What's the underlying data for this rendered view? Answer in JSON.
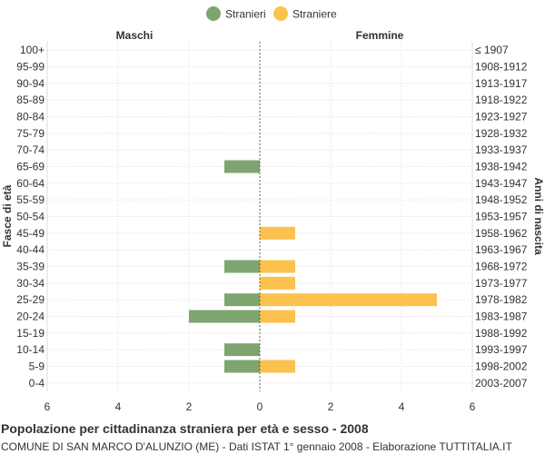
{
  "chart_data": {
    "type": "bar",
    "orientation": "horizontal-population-pyramid",
    "title": "Popolazione per cittadinanza straniera per età e sesso - 2008",
    "subtitle": "COMUNE DI SAN MARCO D'ALUNZIO (ME) - Dati ISTAT 1° gennaio 2008 - Elaborazione TUTTITALIA.IT",
    "ylabel_left": "Fasce di età",
    "ylabel_right": "Anni di nascita",
    "left_header": "Maschi",
    "right_header": "Femmine",
    "xlim": [
      -6,
      6
    ],
    "xticks": [
      "6",
      "4",
      "2",
      "0",
      "2",
      "4",
      "6"
    ],
    "grid": true,
    "legend_position": "top",
    "categories": [
      "100+",
      "95-99",
      "90-94",
      "85-89",
      "80-84",
      "75-79",
      "70-74",
      "65-69",
      "60-64",
      "55-59",
      "50-54",
      "45-49",
      "40-44",
      "35-39",
      "30-34",
      "25-29",
      "20-24",
      "15-19",
      "10-14",
      "5-9",
      "0-4"
    ],
    "birth_years": [
      "≤ 1907",
      "1908-1912",
      "1913-1917",
      "1918-1922",
      "1923-1927",
      "1928-1932",
      "1933-1937",
      "1938-1942",
      "1943-1947",
      "1948-1952",
      "1953-1957",
      "1958-1962",
      "1963-1967",
      "1968-1972",
      "1973-1977",
      "1978-1982",
      "1983-1987",
      "1988-1992",
      "1993-1997",
      "1998-2002",
      "2003-2007"
    ],
    "series": [
      {
        "name": "Stranieri",
        "color": "#7ea56f",
        "side": "left",
        "values": [
          0,
          0,
          0,
          0,
          0,
          0,
          0,
          1,
          0,
          0,
          0,
          0,
          0,
          1,
          0,
          1,
          2,
          0,
          1,
          1,
          0
        ]
      },
      {
        "name": "Straniere",
        "color": "#fcc24d",
        "side": "right",
        "values": [
          0,
          0,
          0,
          0,
          0,
          0,
          0,
          0,
          0,
          0,
          0,
          1,
          0,
          1,
          1,
          5,
          1,
          0,
          0,
          1,
          0
        ]
      }
    ]
  }
}
